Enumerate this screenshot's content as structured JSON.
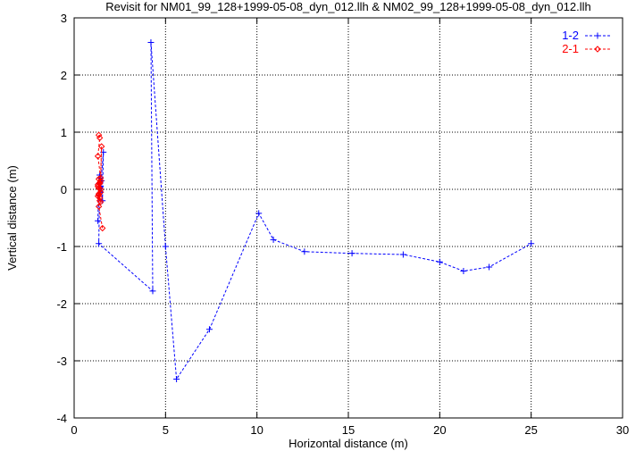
{
  "chart_data": {
    "type": "line",
    "title": "Revisit for NM01_99_128+1999-05-08_dyn_012.llh & NM02_99_128+1999-05-08_dyn_012.llh",
    "xlabel": "Horizontal distance (m)",
    "ylabel": "Vertical distance (m)",
    "xlim": [
      0,
      30
    ],
    "ylim": [
      -4,
      3
    ],
    "xticks": [
      0,
      5,
      10,
      15,
      20,
      25,
      30
    ],
    "yticks": [
      -4,
      -3,
      -2,
      -1,
      0,
      1,
      2,
      3
    ],
    "grid": true,
    "legend_position": "top-right",
    "series": [
      {
        "name": "1-2",
        "color": "#0000ff",
        "marker": "plus",
        "line": "dashed",
        "points": [
          [
            1.3,
            -0.55
          ],
          [
            1.35,
            0.1
          ],
          [
            1.4,
            0.25
          ],
          [
            1.45,
            -0.05
          ],
          [
            1.5,
            0.15
          ],
          [
            1.55,
            -0.2
          ],
          [
            1.6,
            0.65
          ],
          [
            1.45,
            0.05
          ],
          [
            1.35,
            -0.1
          ],
          [
            1.4,
            0.2
          ],
          [
            1.35,
            -0.95
          ],
          [
            4.3,
            -1.78
          ],
          [
            4.2,
            2.57
          ],
          [
            5.0,
            -1.0
          ],
          [
            5.6,
            -3.32
          ],
          [
            7.4,
            -2.45
          ],
          [
            10.1,
            -0.42
          ],
          [
            10.9,
            -0.88
          ],
          [
            12.6,
            -1.09
          ],
          [
            15.2,
            -1.12
          ],
          [
            18.0,
            -1.14
          ],
          [
            20.0,
            -1.27
          ],
          [
            21.3,
            -1.43
          ],
          [
            22.7,
            -1.36
          ],
          [
            25.0,
            -0.95
          ]
        ]
      },
      {
        "name": "2-1",
        "color": "#ff0000",
        "marker": "diamond",
        "line": "dashed",
        "points": [
          [
            1.35,
            0.95
          ],
          [
            1.4,
            0.9
          ],
          [
            1.3,
            0.58
          ],
          [
            1.45,
            0.2
          ],
          [
            1.35,
            -0.1
          ],
          [
            1.4,
            0.12
          ],
          [
            1.3,
            0.08
          ],
          [
            1.45,
            -0.05
          ],
          [
            1.35,
            0.02
          ],
          [
            1.4,
            -0.15
          ],
          [
            1.3,
            0.05
          ],
          [
            1.45,
            -0.22
          ],
          [
            1.35,
            -0.08
          ],
          [
            1.4,
            0.1
          ],
          [
            1.3,
            -0.12
          ],
          [
            1.45,
            0.0
          ],
          [
            1.35,
            0.18
          ],
          [
            1.4,
            -0.2
          ],
          [
            1.5,
            0.75
          ],
          [
            1.45,
            0.15
          ],
          [
            1.35,
            -0.3
          ],
          [
            1.55,
            -0.68
          ]
        ]
      }
    ]
  }
}
